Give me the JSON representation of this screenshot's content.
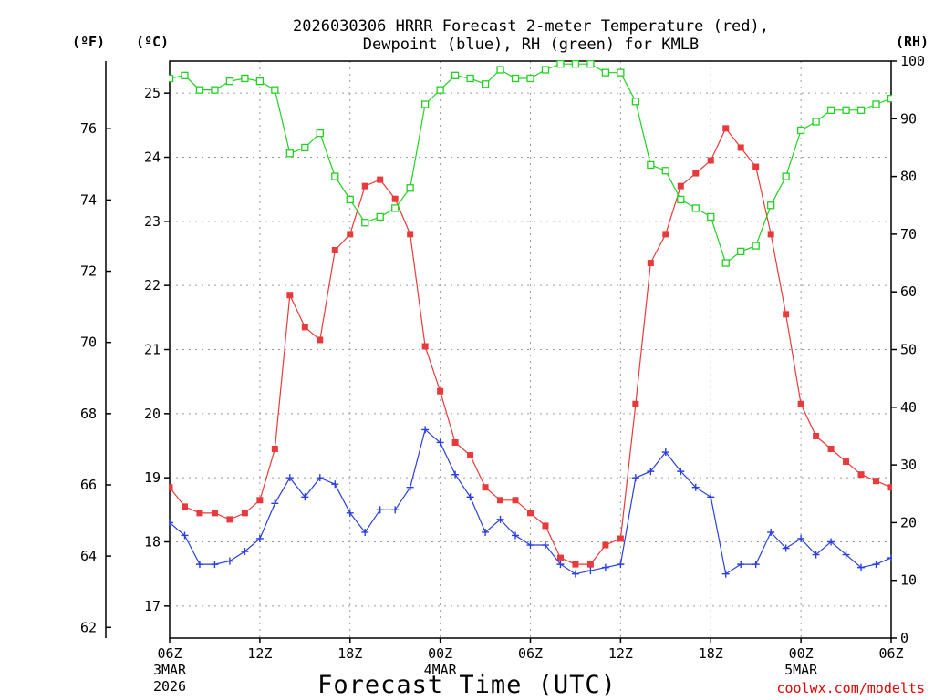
{
  "chart_data": {
    "type": "line",
    "title_line1": "2026030306 HRRR Forecast 2-meter Temperature (red),",
    "title_line2": "Dewpoint (blue), RH (green) for KMLB",
    "xlabel": "Forecast Time (UTC)",
    "credit": "coolwx.com/modelts",
    "axis_units": {
      "fahrenheit": "(ºF)",
      "celsius": "(ºC)",
      "rh": "(RH)"
    },
    "x_hours_range": [
      0,
      48
    ],
    "celsius_range": [
      16.5,
      25.5
    ],
    "rh_range": [
      0,
      100
    ],
    "x_ticks": [
      {
        "hour": 0,
        "label": "06Z",
        "date1": "3MAR",
        "date2": "2026"
      },
      {
        "hour": 6,
        "label": "12Z"
      },
      {
        "hour": 12,
        "label": "18Z"
      },
      {
        "hour": 18,
        "label": "00Z",
        "date1": "4MAR"
      },
      {
        "hour": 24,
        "label": "06Z"
      },
      {
        "hour": 30,
        "label": "12Z"
      },
      {
        "hour": 36,
        "label": "18Z"
      },
      {
        "hour": 42,
        "label": "00Z",
        "date1": "5MAR"
      },
      {
        "hour": 48,
        "label": "06Z"
      }
    ],
    "celsius_ticks": [
      "17",
      "18",
      "19",
      "20",
      "21",
      "22",
      "23",
      "24",
      "25"
    ],
    "fahrenheit_ticks": [
      "62",
      "64",
      "66",
      "68",
      "70",
      "72",
      "74",
      "76"
    ],
    "rh_ticks": [
      "0",
      "10",
      "20",
      "30",
      "40",
      "50",
      "60",
      "70",
      "80",
      "90",
      "100"
    ],
    "series": [
      {
        "name": "Temperature",
        "color": "#e83a3a",
        "unit": "C",
        "marker": "filled-square",
        "values": [
          18.85,
          18.55,
          18.45,
          18.45,
          18.35,
          18.45,
          18.65,
          19.45,
          21.85,
          21.35,
          21.15,
          22.55,
          22.8,
          23.55,
          23.65,
          23.35,
          22.8,
          21.05,
          20.35,
          19.55,
          19.35,
          18.85,
          18.65,
          18.65,
          18.45,
          18.25,
          17.75,
          17.65,
          17.65,
          17.95,
          18.05,
          20.15,
          22.35,
          22.8,
          23.55,
          23.75,
          23.95,
          24.45,
          24.15,
          23.85,
          22.8,
          21.55,
          20.15,
          19.65,
          19.45,
          19.25,
          19.05,
          18.95,
          18.85
        ]
      },
      {
        "name": "Dewpoint",
        "color": "#2a3fe0",
        "unit": "C",
        "marker": "plus",
        "values": [
          18.3,
          18.1,
          17.65,
          17.65,
          17.7,
          17.85,
          18.05,
          18.6,
          19.0,
          18.7,
          19.0,
          18.9,
          18.45,
          18.15,
          18.5,
          18.5,
          18.85,
          19.75,
          19.55,
          19.05,
          18.7,
          18.15,
          18.35,
          18.1,
          17.95,
          17.95,
          17.65,
          17.5,
          17.55,
          17.6,
          17.65,
          19.0,
          19.1,
          19.4,
          19.1,
          18.85,
          18.7,
          17.5,
          17.65,
          17.65,
          18.15,
          17.9,
          18.05,
          17.8,
          18.0,
          17.8,
          17.6,
          17.65,
          17.75
        ]
      },
      {
        "name": "RH",
        "color": "#22d122",
        "unit": "%",
        "marker": "open-square",
        "values": [
          97,
          97.5,
          95,
          95,
          96.5,
          97,
          96.5,
          95,
          84,
          85,
          87.5,
          80,
          76,
          72,
          73,
          74.5,
          78,
          92.5,
          95,
          97.5,
          97,
          96,
          98.5,
          97,
          97,
          98.5,
          99.5,
          99.5,
          99.5,
          98,
          98,
          93,
          82,
          81,
          76,
          74.5,
          73,
          65,
          67,
          68,
          75,
          80,
          88,
          89.5,
          91.5,
          91.5,
          91.5,
          92.5,
          93.5
        ]
      }
    ]
  }
}
